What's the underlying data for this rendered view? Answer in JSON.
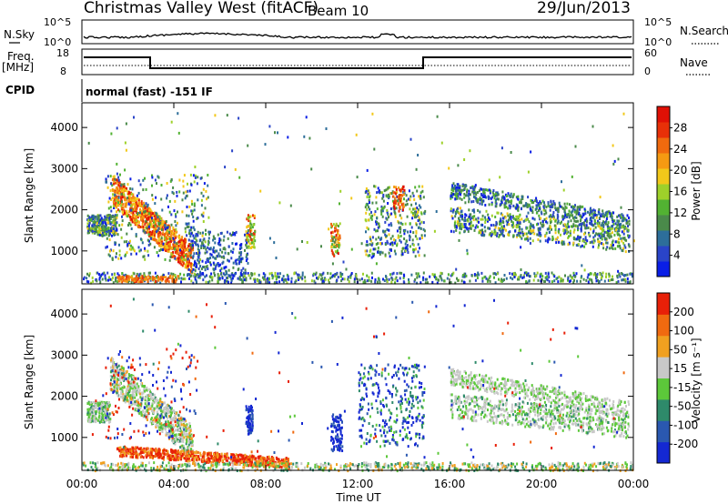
{
  "header": {
    "title": "Christmas Valley West (fitACF)",
    "beam": "Beam 10",
    "date": "29/Jun/2013"
  },
  "nsky_panel": {
    "left_label": "N.Sky",
    "right_label": "N.Search",
    "left_ticks": [
      "10^5",
      "10^0"
    ],
    "right_ticks": [
      "10^5",
      "10^0"
    ]
  },
  "freq_panel": {
    "left_label_1": "Freq.",
    "left_label_2": "[MHz]",
    "right_label": "Nave",
    "left_ticks": [
      "18",
      "8"
    ],
    "right_ticks": [
      "60",
      "0"
    ]
  },
  "cpid": {
    "label": "CPID",
    "value": "normal (fast) -151 IF"
  },
  "chart_data": [
    {
      "type": "heatmap",
      "name": "power",
      "ylabel": "Slant Range [km]",
      "ylim": [
        200,
        4600
      ],
      "yticks": [
        "1000",
        "2000",
        "3000",
        "4000"
      ],
      "colorbar_label": "Power [dB]",
      "colorbar_ticks": [
        "28",
        "24",
        "20",
        "16",
        "12",
        "8",
        "4"
      ],
      "colorscale": [
        "#0a1ee6",
        "#2a44c8",
        "#2d6e9a",
        "#4a8a4a",
        "#52b232",
        "#9ed12a",
        "#f2c81a",
        "#f59a12",
        "#f06a0e",
        "#e83008",
        "#e01005"
      ]
    },
    {
      "type": "heatmap",
      "name": "velocity",
      "ylabel": "Slant Range [km]",
      "ylim": [
        200,
        4600
      ],
      "yticks": [
        "1000",
        "2000",
        "3000",
        "4000"
      ],
      "colorbar_label": "Velocity [m s⁻¹]",
      "colorbar_ticks": [
        "200",
        "100",
        "50",
        "15",
        "-15",
        "-50",
        "-100",
        "-200"
      ],
      "colorscale": [
        "#1428d2",
        "#2a58b0",
        "#2e8a6a",
        "#5cc83a",
        "#c8c8c8",
        "#f0a020",
        "#f06a10",
        "#e82008"
      ]
    }
  ],
  "time_axis": {
    "label": "Time UT",
    "ticks": [
      "00:00",
      "04:00",
      "08:00",
      "12:00",
      "16:00",
      "20:00",
      "00:00"
    ]
  }
}
